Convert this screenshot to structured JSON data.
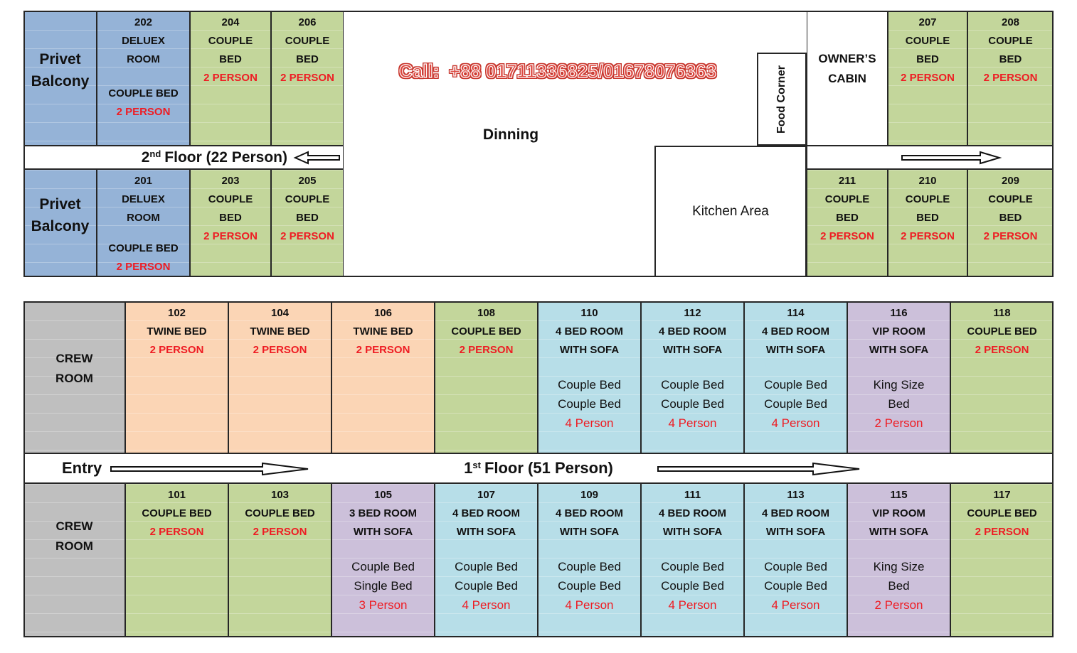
{
  "phone": {
    "text": "Call:  +88 01711336825/01678076363"
  },
  "labels": {
    "dinning": "Dinning",
    "kitchen": "Kitchen Area",
    "food_corner": "Food Corner",
    "entry": "Entry"
  },
  "palette": {
    "blue": "#95b3d7",
    "green": "#c3d69b",
    "peach": "#fbd5b5",
    "cyan": "#b7dee8",
    "purple": "#ccc0da",
    "gray": "#bfbfbf",
    "red_text": "#ee1c23",
    "border": "#262626",
    "phone_red": "#dd4840"
  },
  "floor2": {
    "title": {
      "num": "2",
      "sup": "nd",
      "rest": "Floor (22 Person)"
    },
    "top_left": [
      {
        "name": "privet-balcony-top",
        "color": "blue",
        "cls": "cell-balcony-top",
        "lines": [
          [
            "xl",
            "Privet"
          ],
          [
            "xl",
            "Balcony"
          ]
        ]
      },
      {
        "name": "room-202",
        "color": "blue",
        "lines": [
          [
            "num",
            "202"
          ],
          [
            "b",
            "DELUEX"
          ],
          [
            "b",
            "ROOM"
          ],
          [
            "gap"
          ],
          [
            "b",
            "COUPLE BED"
          ],
          [
            "r",
            "2 PERSON"
          ]
        ]
      },
      {
        "name": "room-204",
        "color": "green",
        "lines": [
          [
            "num",
            "204"
          ],
          [
            "b",
            "COUPLE"
          ],
          [
            "b",
            "BED"
          ],
          [
            "r",
            "2 PERSON"
          ]
        ]
      },
      {
        "name": "room-206",
        "color": "green",
        "lines": [
          [
            "num",
            "206"
          ],
          [
            "b",
            "COUPLE"
          ],
          [
            "b",
            "BED"
          ],
          [
            "r",
            "2 PERSON"
          ]
        ]
      }
    ],
    "bottom_left": [
      {
        "name": "privet-balcony-bottom",
        "color": "blue",
        "cls": "cell-balcony-bot",
        "lines": [
          [
            "xl",
            "Privet"
          ],
          [
            "xl",
            "Balcony"
          ]
        ]
      },
      {
        "name": "room-201",
        "color": "blue",
        "lines": [
          [
            "num",
            "201"
          ],
          [
            "b",
            "DELUEX"
          ],
          [
            "b",
            "ROOM"
          ],
          [
            "gap"
          ],
          [
            "b",
            "COUPLE BED"
          ],
          [
            "r",
            "2 PERSON"
          ]
        ]
      },
      {
        "name": "room-203",
        "color": "green",
        "lines": [
          [
            "num",
            "203"
          ],
          [
            "b",
            "COUPLE"
          ],
          [
            "b",
            "BED"
          ],
          [
            "r",
            "2 PERSON"
          ]
        ]
      },
      {
        "name": "room-205",
        "color": "green",
        "lines": [
          [
            "num",
            "205"
          ],
          [
            "b",
            "COUPLE"
          ],
          [
            "b",
            "BED"
          ],
          [
            "r",
            "2 PERSON"
          ]
        ]
      }
    ],
    "top_right": [
      {
        "name": "owners-cabin",
        "color": "white",
        "cls": "cell-vcenter",
        "lines": [
          [
            "md",
            "OWNER’S"
          ],
          [
            "md",
            "CABIN"
          ]
        ]
      },
      {
        "name": "room-207",
        "color": "green",
        "lines": [
          [
            "num",
            "207"
          ],
          [
            "b",
            "COUPLE"
          ],
          [
            "b",
            "BED"
          ],
          [
            "r",
            "2 PERSON"
          ]
        ]
      },
      {
        "name": "room-208",
        "color": "green",
        "lines": [
          [
            "num",
            "208"
          ],
          [
            "b",
            "COUPLE"
          ],
          [
            "b",
            "BED"
          ],
          [
            "r",
            "2 PERSON"
          ]
        ]
      }
    ],
    "bottom_right": [
      {
        "name": "room-211",
        "color": "green",
        "lines": [
          [
            "num",
            "211"
          ],
          [
            "b",
            "COUPLE"
          ],
          [
            "b",
            "BED"
          ],
          [
            "r",
            "2 PERSON"
          ]
        ]
      },
      {
        "name": "room-210",
        "color": "green",
        "lines": [
          [
            "num",
            "210"
          ],
          [
            "b",
            "COUPLE"
          ],
          [
            "b",
            "BED"
          ],
          [
            "r",
            "2 PERSON"
          ]
        ]
      },
      {
        "name": "room-209",
        "color": "green",
        "lines": [
          [
            "num",
            "209"
          ],
          [
            "b",
            "COUPLE"
          ],
          [
            "b",
            "BED"
          ],
          [
            "r",
            "2 PERSON"
          ]
        ]
      }
    ]
  },
  "floor1": {
    "title": {
      "num": "1",
      "sup": "st",
      "rest": "Floor (51 Person)"
    },
    "top": [
      {
        "name": "crew-room-top",
        "color": "gray",
        "cls": "cell-crew-top",
        "lines": [
          [
            "md",
            "CREW"
          ],
          [
            "md",
            "ROOM"
          ]
        ]
      },
      {
        "name": "room-102",
        "color": "peach",
        "lines": [
          [
            "num",
            "102"
          ],
          [
            "b",
            "TWINE BED"
          ],
          [
            "r",
            "2 PERSON"
          ]
        ]
      },
      {
        "name": "room-104",
        "color": "peach",
        "lines": [
          [
            "num",
            "104"
          ],
          [
            "b",
            "TWINE BED"
          ],
          [
            "r",
            "2 PERSON"
          ]
        ]
      },
      {
        "name": "room-106",
        "color": "peach",
        "lines": [
          [
            "num",
            "106"
          ],
          [
            "b",
            "TWINE BED"
          ],
          [
            "r",
            "2 PERSON"
          ]
        ]
      },
      {
        "name": "room-108",
        "color": "green",
        "lines": [
          [
            "num",
            "108"
          ],
          [
            "b",
            "COUPLE BED"
          ],
          [
            "r",
            "2 PERSON"
          ]
        ]
      },
      {
        "name": "room-110",
        "color": "cyan",
        "lines": [
          [
            "num",
            "110"
          ],
          [
            "b",
            "4 BED ROOM"
          ],
          [
            "b",
            "WITH SOFA"
          ],
          [
            "gap"
          ],
          [
            "n",
            "Couple Bed"
          ],
          [
            "n",
            "Couple Bed"
          ],
          [
            "rn",
            "4 Person"
          ]
        ]
      },
      {
        "name": "room-112",
        "color": "cyan",
        "lines": [
          [
            "num",
            "112"
          ],
          [
            "b",
            "4 BED ROOM"
          ],
          [
            "b",
            "WITH SOFA"
          ],
          [
            "gap"
          ],
          [
            "n",
            "Couple Bed"
          ],
          [
            "n",
            "Couple Bed"
          ],
          [
            "rn",
            "4 Person"
          ]
        ]
      },
      {
        "name": "room-114",
        "color": "cyan",
        "lines": [
          [
            "num",
            "114"
          ],
          [
            "b",
            "4 BED ROOM"
          ],
          [
            "b",
            "WITH SOFA"
          ],
          [
            "gap"
          ],
          [
            "n",
            "Couple Bed"
          ],
          [
            "n",
            "Couple Bed"
          ],
          [
            "rn",
            "4 Person"
          ]
        ]
      },
      {
        "name": "room-116",
        "color": "purple",
        "lines": [
          [
            "num",
            "116"
          ],
          [
            "b",
            "VIP ROOM"
          ],
          [
            "b",
            "WITH SOFA"
          ],
          [
            "gap"
          ],
          [
            "n",
            "King Size"
          ],
          [
            "n",
            "Bed"
          ],
          [
            "rn",
            "2 Person"
          ]
        ]
      },
      {
        "name": "room-118",
        "color": "green",
        "lines": [
          [
            "num",
            "118"
          ],
          [
            "b",
            "COUPLE BED"
          ],
          [
            "r",
            "2 PERSON"
          ]
        ]
      }
    ],
    "bottom": [
      {
        "name": "crew-room-bottom",
        "color": "gray",
        "cls": "cell-crew-bot",
        "lines": [
          [
            "md",
            "CREW"
          ],
          [
            "md",
            "ROOM"
          ]
        ]
      },
      {
        "name": "room-101",
        "color": "green",
        "lines": [
          [
            "num",
            "101"
          ],
          [
            "b",
            "COUPLE BED"
          ],
          [
            "r",
            "2 PERSON"
          ]
        ]
      },
      {
        "name": "room-103",
        "color": "green",
        "lines": [
          [
            "num",
            "103"
          ],
          [
            "b",
            "COUPLE BED"
          ],
          [
            "r",
            "2 PERSON"
          ]
        ]
      },
      {
        "name": "room-105",
        "color": "purple",
        "lines": [
          [
            "num",
            "105"
          ],
          [
            "b",
            "3 BED ROOM"
          ],
          [
            "b",
            "WITH SOFA"
          ],
          [
            "gap"
          ],
          [
            "n",
            "Couple Bed"
          ],
          [
            "n",
            "Single Bed"
          ],
          [
            "rn",
            "3 Person"
          ]
        ]
      },
      {
        "name": "room-107",
        "color": "cyan",
        "lines": [
          [
            "num",
            "107"
          ],
          [
            "b",
            "4 BED ROOM"
          ],
          [
            "b",
            "WITH SOFA"
          ],
          [
            "gap"
          ],
          [
            "n",
            "Couple Bed"
          ],
          [
            "n",
            "Couple Bed"
          ],
          [
            "rn",
            "4 Person"
          ]
        ]
      },
      {
        "name": "room-109",
        "color": "cyan",
        "lines": [
          [
            "num",
            "109"
          ],
          [
            "b",
            "4 BED ROOM"
          ],
          [
            "b",
            "WITH SOFA"
          ],
          [
            "gap"
          ],
          [
            "n",
            "Couple Bed"
          ],
          [
            "n",
            "Couple Bed"
          ],
          [
            "rn",
            "4 Person"
          ]
        ]
      },
      {
        "name": "room-111",
        "color": "cyan",
        "lines": [
          [
            "num",
            "111"
          ],
          [
            "b",
            "4 BED ROOM"
          ],
          [
            "b",
            "WITH SOFA"
          ],
          [
            "gap"
          ],
          [
            "n",
            "Couple Bed"
          ],
          [
            "n",
            "Couple Bed"
          ],
          [
            "rn",
            "4 Person"
          ]
        ]
      },
      {
        "name": "room-113",
        "color": "cyan",
        "lines": [
          [
            "num",
            "113"
          ],
          [
            "b",
            "4 BED ROOM"
          ],
          [
            "b",
            "WITH SOFA"
          ],
          [
            "gap"
          ],
          [
            "n",
            "Couple Bed"
          ],
          [
            "n",
            "Couple Bed"
          ],
          [
            "rn",
            "4 Person"
          ]
        ]
      },
      {
        "name": "room-115",
        "color": "purple",
        "lines": [
          [
            "num",
            "115"
          ],
          [
            "b",
            "VIP ROOM"
          ],
          [
            "b",
            "WITH SOFA"
          ],
          [
            "gap"
          ],
          [
            "n",
            "King Size"
          ],
          [
            "n",
            "Bed"
          ],
          [
            "rn",
            "2 Person"
          ]
        ]
      },
      {
        "name": "room-117",
        "color": "green",
        "lines": [
          [
            "num",
            "117"
          ],
          [
            "b",
            "COUPLE BED"
          ],
          [
            "r",
            "2 PERSON"
          ]
        ]
      }
    ]
  }
}
